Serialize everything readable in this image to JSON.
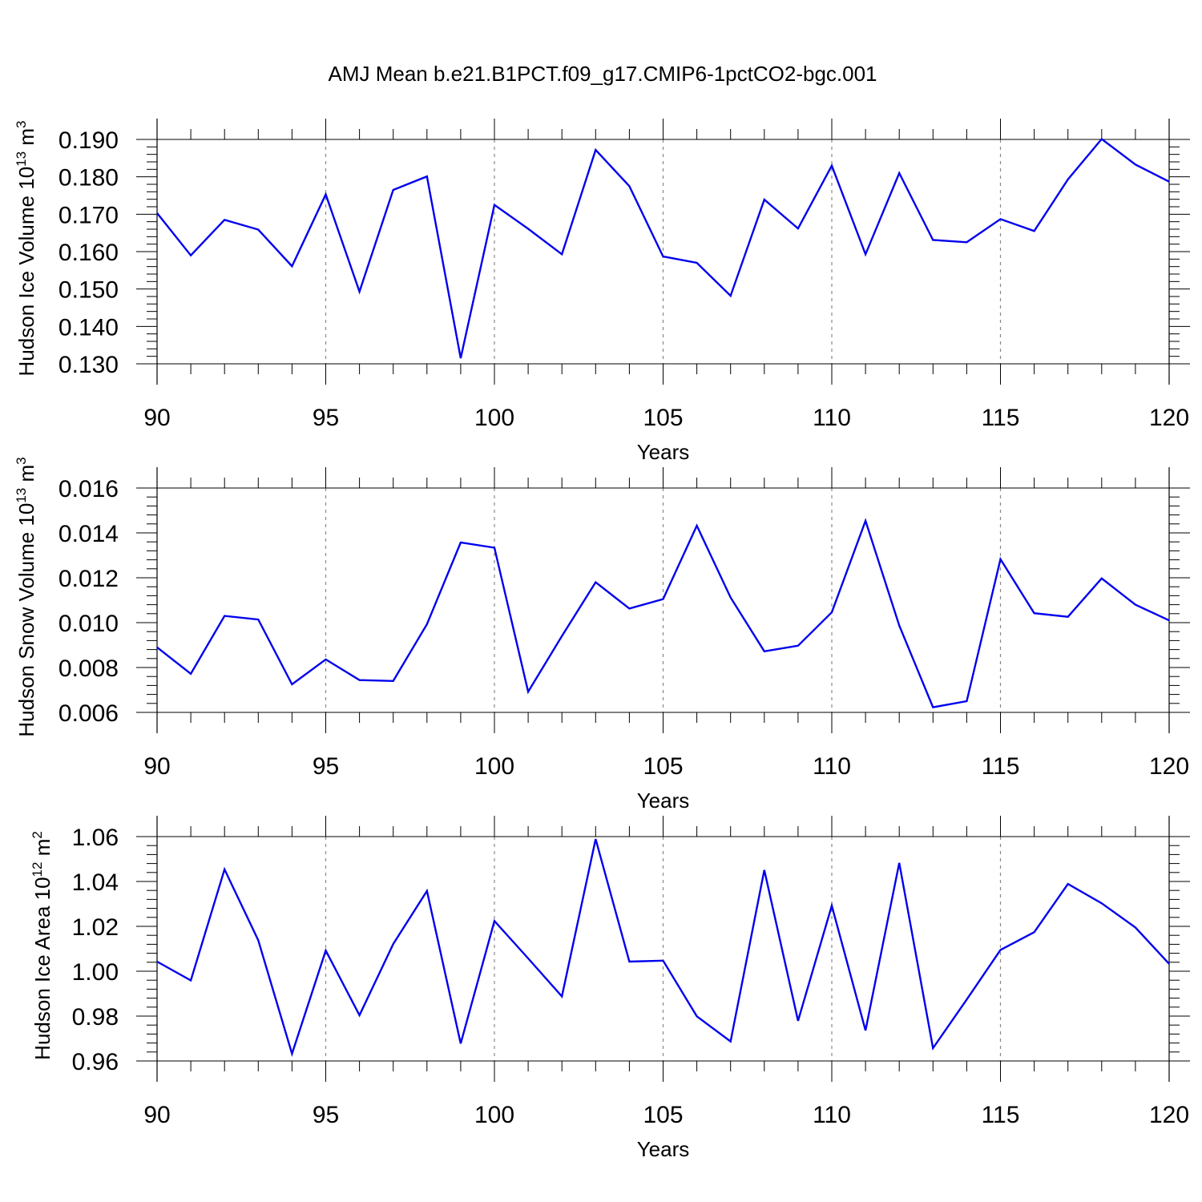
{
  "figure": {
    "title": "AMJ Mean b.e21.B1PCT.f09_g17.CMIP6-1pctCO2-bgc.001"
  },
  "chart_data": [
    {
      "type": "line",
      "ylabel_main": "Hudson Ice Volume 10",
      "ylabel_exp": "13",
      "ylabel_unit": " m",
      "ylabel_unit_exp": "3",
      "xlabel": "Years",
      "xlim": [
        90,
        120
      ],
      "ylim": [
        0.13,
        0.19
      ],
      "xticks": [
        90,
        95,
        100,
        105,
        110,
        115,
        120
      ],
      "xtick_labels": [
        "90",
        "95",
        "100",
        "105",
        "110",
        "115",
        "120"
      ],
      "yticks": [
        0.13,
        0.14,
        0.15,
        0.16,
        0.17,
        0.18,
        0.19
      ],
      "ytick_labels": [
        "0.130",
        "0.140",
        "0.150",
        "0.160",
        "0.170",
        "0.180",
        "0.190"
      ],
      "color": "#0000ee",
      "x": [
        90,
        91,
        92,
        93,
        94,
        95,
        96,
        97,
        98,
        99,
        100,
        101,
        102,
        103,
        104,
        105,
        106,
        107,
        108,
        109,
        110,
        111,
        112,
        113,
        114,
        115,
        116,
        117,
        118,
        119,
        120
      ],
      "values": [
        0.1703,
        0.159,
        0.1685,
        0.1659,
        0.1561,
        0.1753,
        0.1493,
        0.1765,
        0.1801,
        0.1315,
        0.1725,
        0.1661,
        0.1593,
        0.1872,
        0.1775,
        0.1587,
        0.157,
        0.1482,
        0.1739,
        0.1662,
        0.183,
        0.1593,
        0.181,
        0.1631,
        0.1625,
        0.1687,
        0.1655,
        0.1793,
        0.1901,
        0.1833,
        0.1787
      ]
    },
    {
      "type": "line",
      "ylabel_main": "Hudson Snow Volume 10",
      "ylabel_exp": "13",
      "ylabel_unit": " m",
      "ylabel_unit_exp": "3",
      "xlabel": "Years",
      "xlim": [
        90,
        120
      ],
      "ylim": [
        0.006,
        0.016
      ],
      "xticks": [
        90,
        95,
        100,
        105,
        110,
        115,
        120
      ],
      "xtick_labels": [
        "90",
        "95",
        "100",
        "105",
        "110",
        "115",
        "120"
      ],
      "yticks": [
        0.006,
        0.008,
        0.01,
        0.012,
        0.014,
        0.016
      ],
      "ytick_labels": [
        "0.006",
        "0.008",
        "0.010",
        "0.012",
        "0.014",
        "0.016"
      ],
      "color": "#0000ee",
      "x": [
        90,
        91,
        92,
        93,
        94,
        95,
        96,
        97,
        98,
        99,
        100,
        101,
        102,
        103,
        104,
        105,
        106,
        107,
        108,
        109,
        110,
        111,
        112,
        113,
        114,
        115,
        116,
        117,
        118,
        119,
        120
      ],
      "values": [
        0.0089,
        0.00772,
        0.0103,
        0.01014,
        0.00725,
        0.00836,
        0.00744,
        0.0074,
        0.00993,
        0.01357,
        0.01334,
        0.00692,
        0.0094,
        0.0118,
        0.01063,
        0.01105,
        0.01432,
        0.01112,
        0.00872,
        0.00897,
        0.01046,
        0.01454,
        0.00987,
        0.00623,
        0.0065,
        0.01283,
        0.01042,
        0.01026,
        0.01197,
        0.0108,
        0.0101
      ]
    },
    {
      "type": "line",
      "ylabel_main": "Hudson Ice Area 10",
      "ylabel_exp": "12",
      "ylabel_unit": " m",
      "ylabel_unit_exp": "2",
      "xlabel": "Years",
      "xlim": [
        90,
        120
      ],
      "ylim": [
        0.96,
        1.06
      ],
      "xticks": [
        90,
        95,
        100,
        105,
        110,
        115,
        120
      ],
      "xtick_labels": [
        "90",
        "95",
        "100",
        "105",
        "110",
        "115",
        "120"
      ],
      "yticks": [
        0.96,
        0.98,
        1.0,
        1.02,
        1.04,
        1.06
      ],
      "ytick_labels": [
        "0.96",
        "0.98",
        "1.00",
        "1.02",
        "1.04",
        "1.06"
      ],
      "color": "#0000ee",
      "x": [
        90,
        91,
        92,
        93,
        94,
        95,
        96,
        97,
        98,
        99,
        100,
        101,
        102,
        103,
        104,
        105,
        106,
        107,
        108,
        109,
        110,
        111,
        112,
        113,
        114,
        115,
        116,
        117,
        118,
        119,
        120
      ],
      "values": [
        1.0043,
        0.9959,
        1.0454,
        1.0138,
        0.9632,
        1.0092,
        0.9804,
        1.0121,
        1.0358,
        0.9678,
        1.0224,
        1.0057,
        0.9888,
        1.0589,
        1.0043,
        1.0047,
        0.9799,
        0.9687,
        1.0451,
        0.9779,
        1.0292,
        0.9736,
        1.0483,
        0.9657,
        0.9874,
        1.0095,
        1.0174,
        1.0389,
        1.0303,
        1.0195,
        1.0033
      ]
    }
  ]
}
